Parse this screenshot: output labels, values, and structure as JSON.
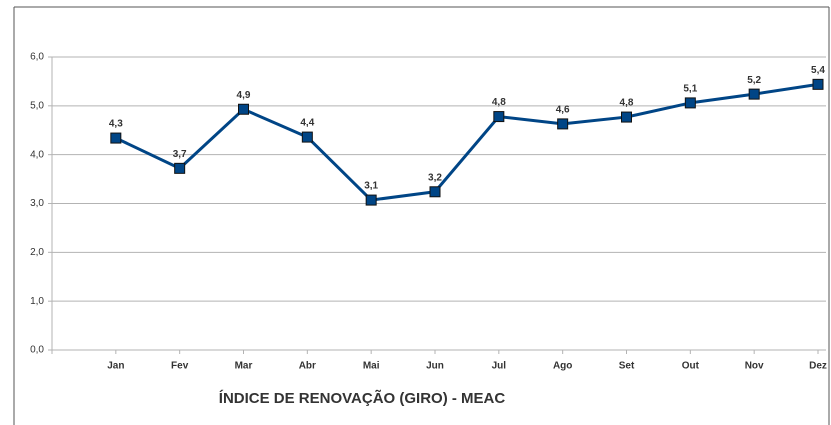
{
  "chart_data": {
    "type": "line",
    "title": "ÍNDICE DE RENOVAÇÃO (GIRO) - MEAC",
    "categories": [
      "Jan",
      "Fev",
      "Mar",
      "Abr",
      "Mai",
      "Jun",
      "Jul",
      "Ago",
      "Set",
      "Out",
      "Nov",
      "Dez"
    ],
    "series": [
      {
        "name": "",
        "color": "#004586",
        "values": [
          4.34,
          3.72,
          4.93,
          4.36,
          3.07,
          3.24,
          4.78,
          4.63,
          4.77,
          5.06,
          5.24,
          5.44
        ],
        "value_labels": [
          "4,3",
          "3,7",
          "4,9",
          "4,4",
          "3,1",
          "3,2",
          "4,8",
          "4,6",
          "4,8",
          "5,1",
          "5,2",
          "5,4"
        ]
      }
    ],
    "ylim": [
      0,
      6
    ],
    "yticks": [
      {
        "value": 0,
        "label": "0,0"
      },
      {
        "value": 1,
        "label": "1,0"
      },
      {
        "value": 2,
        "label": "2,0"
      },
      {
        "value": 3,
        "label": "3,0"
      },
      {
        "value": 4,
        "label": "4,0"
      },
      {
        "value": 5,
        "label": "5,0"
      },
      {
        "value": 6,
        "label": "6,0"
      }
    ],
    "grid": true
  }
}
